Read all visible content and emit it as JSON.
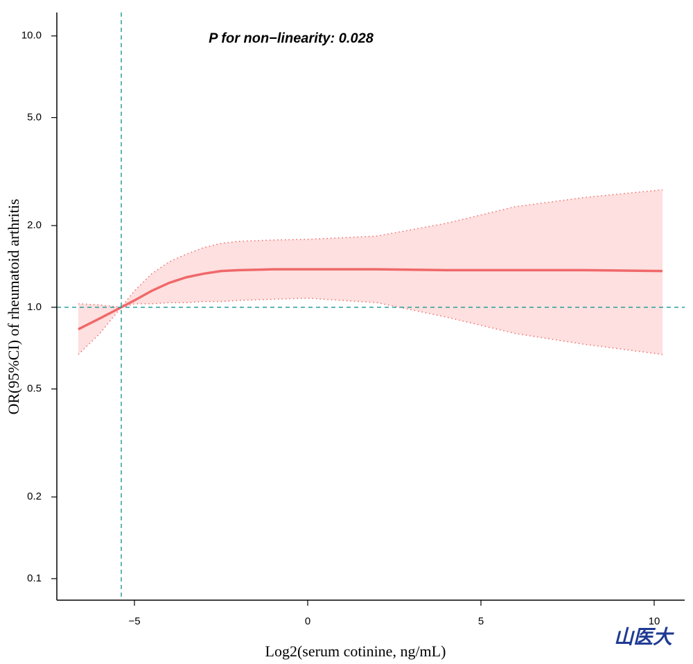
{
  "chart_data": {
    "type": "rcs",
    "annotation": "P for non−linearity: 0.028",
    "xlabel": "Log2(serum cotinine, ng/mL)",
    "ylabel": "OR(95%CI) of rheumatoid arthritis",
    "watermark": "山医大",
    "log_y": true,
    "x": [
      -6.62,
      -6,
      -5.38,
      -5,
      -4.5,
      -4,
      -3.5,
      -3,
      -2.5,
      -2,
      -1,
      0,
      2,
      4,
      6,
      8,
      10.24
    ],
    "values": [
      0.83,
      0.91,
      1.0,
      1.06,
      1.15,
      1.23,
      1.29,
      1.33,
      1.36,
      1.37,
      1.38,
      1.38,
      1.38,
      1.37,
      1.37,
      1.37,
      1.36
    ],
    "upper": [
      1.03,
      1.02,
      1.0,
      1.15,
      1.33,
      1.47,
      1.57,
      1.66,
      1.72,
      1.75,
      1.77,
      1.78,
      1.83,
      2.04,
      2.35,
      2.54,
      2.71
    ],
    "lower": [
      0.67,
      0.8,
      1.0,
      1.03,
      1.03,
      1.04,
      1.04,
      1.05,
      1.05,
      1.06,
      1.07,
      1.08,
      1.04,
      0.92,
      0.8,
      0.73,
      0.67
    ],
    "color": "#f0686a",
    "band_color": "#fde0df",
    "ref_color": "#2a9d9a",
    "vline": -5.38,
    "hline": 1,
    "xlim": [
      -7.24,
      10.88
    ],
    "xticks": [
      {
        "value": -5,
        "label": "−5"
      },
      0,
      5,
      10
    ],
    "ylim": [
      0.0833,
      12.2
    ],
    "yticks": [
      0.1,
      0.2,
      0.5,
      {
        "value": 1,
        "label": "1.0"
      },
      {
        "value": 2,
        "label": "2.0"
      },
      {
        "value": 5,
        "label": "5.0"
      },
      {
        "value": 10,
        "label": "10.0"
      }
    ]
  }
}
